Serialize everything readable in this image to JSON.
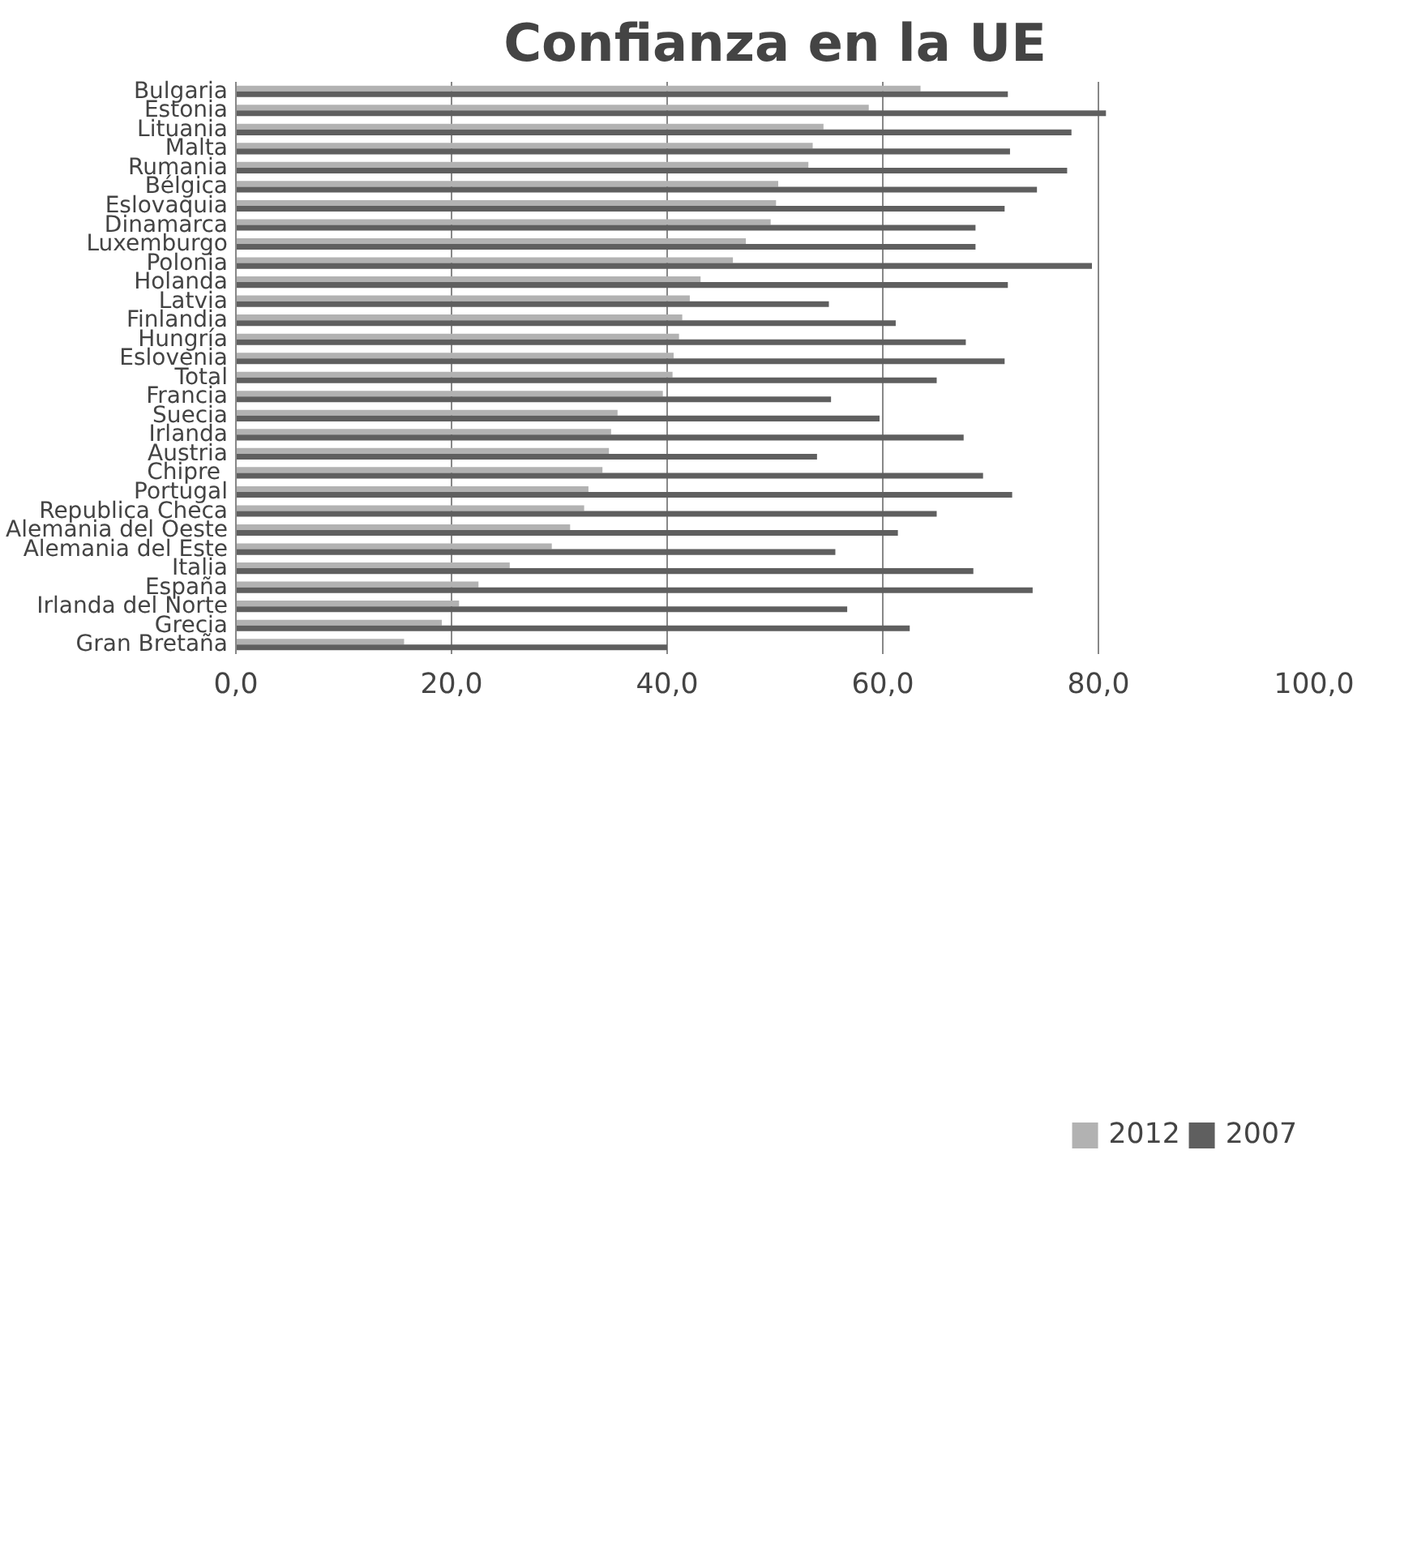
{
  "chart_data": {
    "type": "bar",
    "orientation": "horizontal",
    "title": "Confianza en la UE",
    "categories": [
      "Bulgaria",
      "Estonia",
      "Lituania",
      "Malta",
      "Rumania",
      "Bélgica",
      "Eslovaquia",
      "Dinamarca",
      "Luxemburgo",
      "Polonia",
      "Holanda",
      "Latvia",
      "Finlandia",
      "Hungría",
      "Eslovenia",
      "Total",
      "Francia",
      "Suecia",
      "Irlanda",
      "Austria",
      "Chipre ",
      "Portugal",
      "Republica Checa",
      "Alemania del Oeste",
      "Alemania del Este",
      "Italia",
      "España",
      "Irlanda del Norte",
      "Grecia",
      "Gran Bretaña"
    ],
    "series": [
      {
        "name": "2012",
        "color": "#b2b2b2",
        "values": [
          63.5,
          58.7,
          54.5,
          53.5,
          53.1,
          50.3,
          50.1,
          49.6,
          47.3,
          46.1,
          43.1,
          42.1,
          41.4,
          41.1,
          40.6,
          40.5,
          39.6,
          35.4,
          34.8,
          34.6,
          34.0,
          32.7,
          32.3,
          31.0,
          29.3,
          25.4,
          22.5,
          20.7,
          19.1,
          15.6
        ]
      },
      {
        "name": "2007",
        "color": "#5f5f5f",
        "values": [
          71.6,
          80.7,
          77.5,
          71.8,
          77.1,
          74.3,
          71.3,
          68.6,
          68.6,
          79.4,
          71.6,
          55.0,
          61.2,
          67.7,
          71.3,
          65.0,
          55.2,
          59.7,
          67.5,
          53.9,
          69.3,
          72.0,
          65.0,
          61.4,
          55.6,
          68.4,
          73.9,
          56.7,
          62.5,
          40.0
        ]
      }
    ],
    "xlim": [
      0,
      100
    ],
    "xticks": [
      {
        "value": 0,
        "label": "0,0"
      },
      {
        "value": 20,
        "label": "20,0"
      },
      {
        "value": 40,
        "label": "40,0"
      },
      {
        "value": 60,
        "label": "60,0"
      },
      {
        "value": 80,
        "label": "80,0"
      },
      {
        "value": 100,
        "label": "100,0"
      }
    ],
    "grid": "x",
    "legend": "bottom"
  }
}
